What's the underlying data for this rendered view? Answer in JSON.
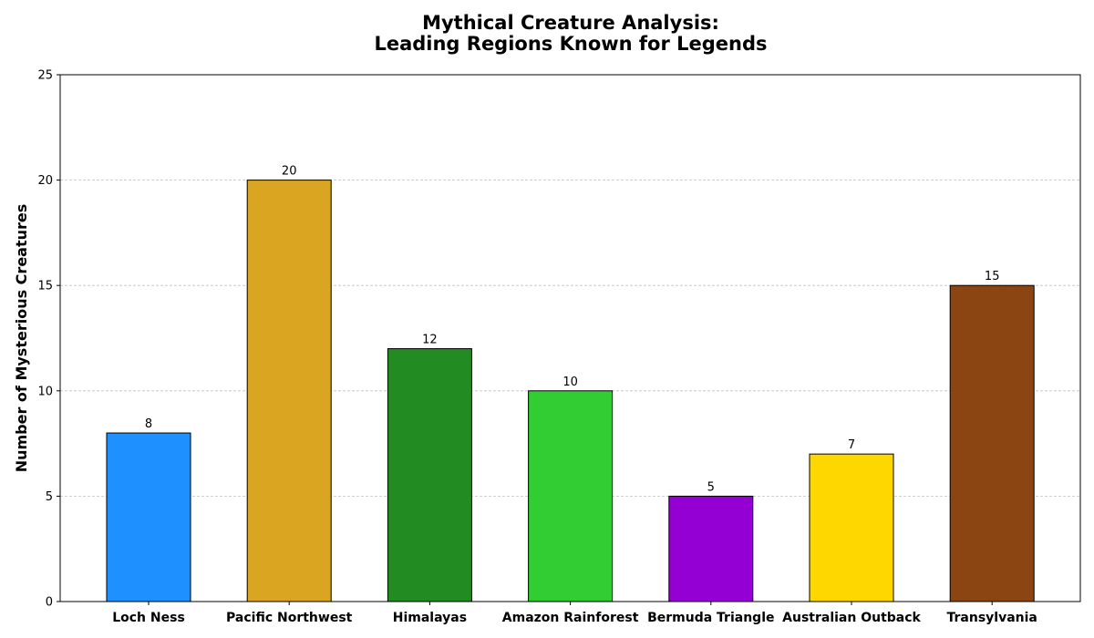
{
  "chart_data": {
    "type": "bar",
    "title": "Mythical Creature Analysis:\nLeading Regions Known for Legends",
    "title_lines": [
      "Mythical Creature Analysis:",
      "Leading Regions Known for Legends"
    ],
    "xlabel": "",
    "ylabel": "Number of Mysterious Creatures",
    "categories": [
      "Loch Ness",
      "Pacific Northwest",
      "Himalayas",
      "Amazon Rainforest",
      "Bermuda Triangle",
      "Australian Outback",
      "Transylvania"
    ],
    "values": [
      8,
      20,
      12,
      10,
      5,
      7,
      15
    ],
    "colors": [
      "#1E90FF",
      "#DAA520",
      "#228B22",
      "#32CD32",
      "#9400D3",
      "#FFD700",
      "#8B4513"
    ],
    "bar_edge_color": "#000000",
    "ylim": [
      0,
      25
    ],
    "yticks": [
      0,
      5,
      10,
      15,
      20,
      25
    ],
    "grid": {
      "axis": "y",
      "style": "dashed",
      "color": "#c0c0c0"
    },
    "data_labels": true,
    "legend": "none"
  }
}
